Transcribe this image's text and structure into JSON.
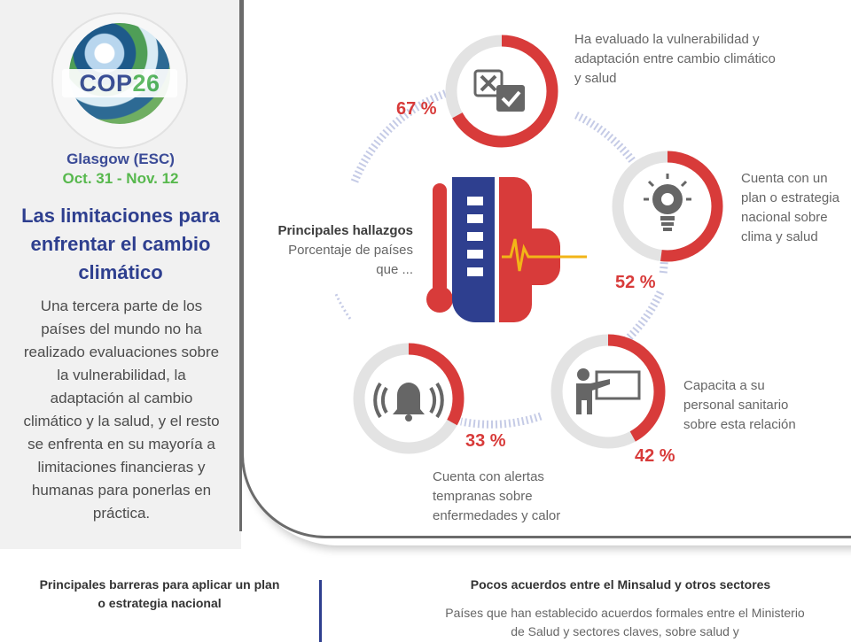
{
  "sidebar": {
    "logo": {
      "cop": "COP",
      "num": "26"
    },
    "city": "Glasgow (ESC)",
    "dates": "Oct. 31 - Nov. 12",
    "title": "Las limitaciones para enfrentar el cambio climático",
    "body": "Una tercera parte de los países del mundo no ha realizado evaluaciones sobre la vulnerabilidad, la adaptación al cambio climático y la salud, y el resto se enfrenta en su mayoría a limitaciones financieras y humanas para ponerlas en práctica."
  },
  "findings": {
    "title": "Principales hallazgos",
    "subtitle": "Porcentaje de países que ..."
  },
  "metrics": [
    {
      "pct_label": "67 %",
      "value": 67,
      "desc": "Ha evaluado la vulnerabilidad y adaptación entre cambio climático y salud",
      "icon": "checklist-icon"
    },
    {
      "pct_label": "52 %",
      "value": 52,
      "desc": "Cuenta con un plan o estrategia nacional sobre clima y salud",
      "icon": "lightbulb-gear-icon"
    },
    {
      "pct_label": "42 %",
      "value": 42,
      "desc": "Capacita a su personal sanitario sobre esta relación",
      "icon": "presentation-icon"
    },
    {
      "pct_label": "33 %",
      "value": 33,
      "desc": "Cuenta con alertas tempranas sobre enfermedades y calor",
      "icon": "alarm-bell-icon"
    }
  ],
  "bottom": {
    "left_title": "Principales barreras para aplicar un plan o estrategia nacional",
    "right_title": "Pocos acuerdos entre el Minsalud y otros sectores",
    "right_desc": "Países que han establecido acuerdos formales entre el Ministerio de Salud y sectores claves, sobre salud y"
  },
  "colors": {
    "accent_red": "#d83b3a",
    "navy": "#2e3f8f",
    "green": "#57b84d",
    "ring_gray": "#e3e3e3",
    "dotted_arc": "#c5cbe6"
  }
}
